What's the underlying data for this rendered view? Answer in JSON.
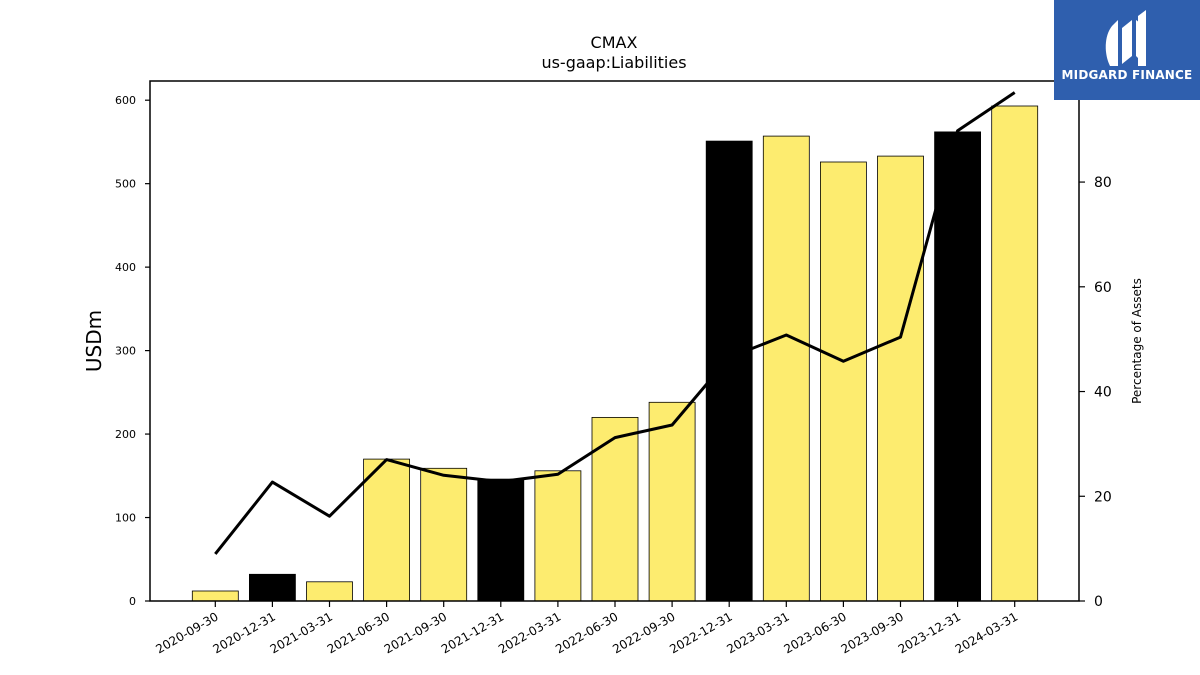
{
  "brand": {
    "name": "MIDGARD FINANCE",
    "background": "#2f5fae",
    "icon": "midgard-logo-icon"
  },
  "chart_data": {
    "type": "bar",
    "title": "CMAX",
    "subtitle": "us-gaap:Liabilities",
    "ylabel": "USDm",
    "y2label": "Percentage of Assets",
    "ylim": [
      0,
      623
    ],
    "y2lim": [
      0,
      99.3
    ],
    "yticks": [
      0,
      100,
      200,
      300,
      400,
      500,
      600
    ],
    "y2ticks": [
      0,
      20,
      40,
      60,
      80
    ],
    "categories": [
      "2020-09-30",
      "2020-12-31",
      "2021-03-31",
      "2021-06-30",
      "2021-09-30",
      "2021-12-31",
      "2022-03-31",
      "2022-06-30",
      "2022-09-30",
      "2022-12-31",
      "2023-03-31",
      "2023-06-30",
      "2023-09-30",
      "2023-12-31",
      "2024-03-31"
    ],
    "series": [
      {
        "type": "bar",
        "axis": "left",
        "values": [
          12,
          32,
          23,
          170,
          159,
          146,
          156,
          220,
          238,
          551,
          557,
          526,
          533,
          562,
          593
        ],
        "colors": [
          "#fdec6f",
          "#000000",
          "#fdec6f",
          "#fdec6f",
          "#fdec6f",
          "#000000",
          "#fdec6f",
          "#fdec6f",
          "#fdec6f",
          "#000000",
          "#fdec6f",
          "#fdec6f",
          "#fdec6f",
          "#000000",
          "#fdec6f"
        ]
      },
      {
        "type": "line",
        "axis": "right",
        "color": "#000000",
        "values": [
          9,
          22.7,
          16.2,
          27,
          24,
          22.8,
          24.2,
          31.2,
          33.6,
          46.5,
          50.8,
          45.8,
          50.4,
          89.8,
          97.1
        ]
      }
    ],
    "grid": false,
    "legend": "none"
  }
}
